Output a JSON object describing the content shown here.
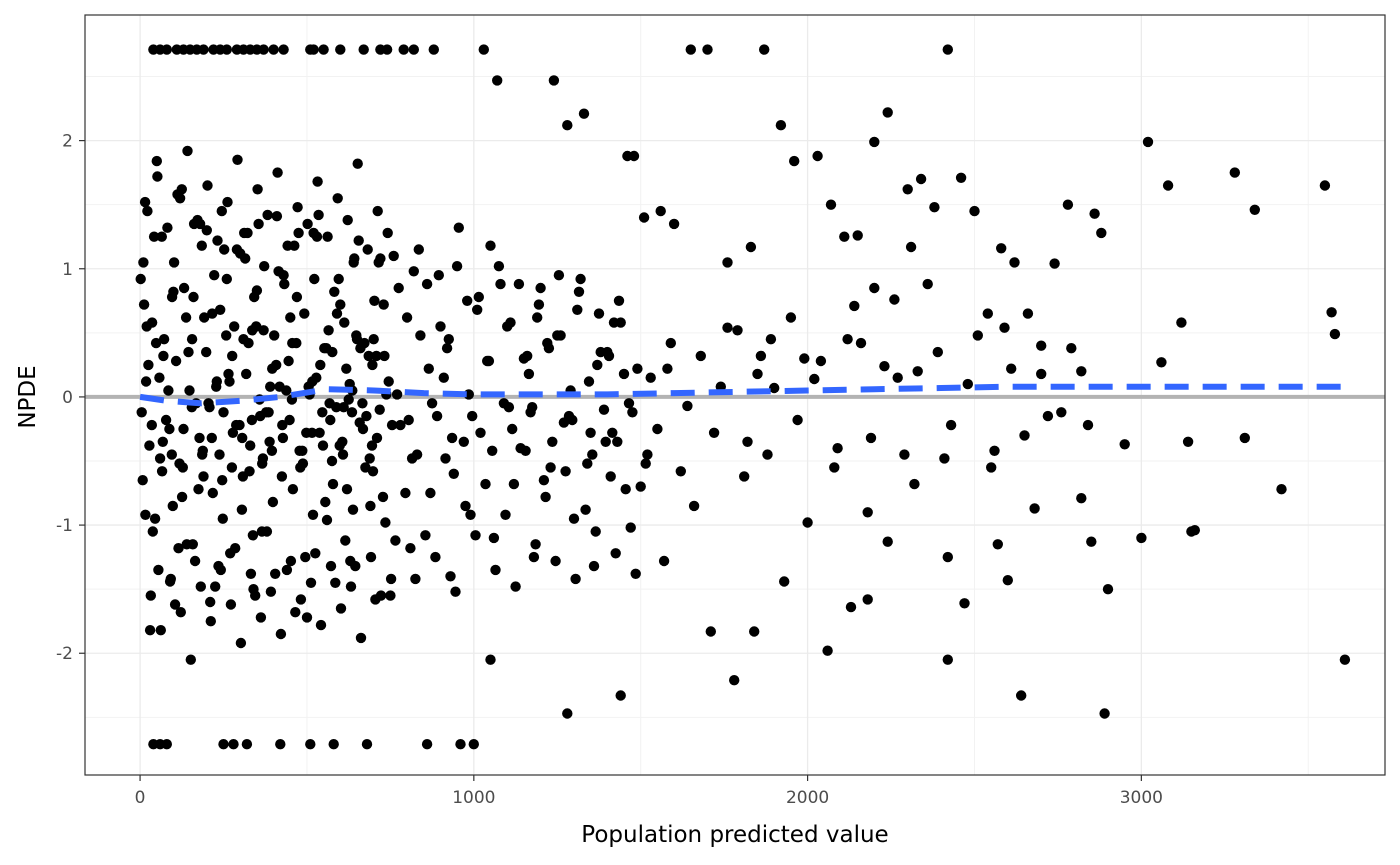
{
  "chart_data": {
    "type": "scatter",
    "title": "",
    "xlabel": "Population predicted value",
    "ylabel": "NPDE",
    "xlim": [
      -165,
      3730
    ],
    "ylim": [
      -2.95,
      2.98
    ],
    "x_ticks": [
      0,
      1000,
      2000,
      3000
    ],
    "y_ticks": [
      -2,
      -1,
      0,
      1,
      2
    ],
    "grid": true,
    "legend": "none",
    "reference_line": {
      "y": 0,
      "color": "#b3b3b3"
    },
    "trend_line": {
      "style": "dashed",
      "color": "#3366ff",
      "x": [
        0,
        80,
        180,
        300,
        420,
        560,
        700,
        850,
        1000,
        1200,
        1400,
        1600,
        1800,
        2000,
        2200,
        2400,
        2600,
        2800,
        3000,
        3200,
        3400,
        3600
      ],
      "y": [
        0.0,
        -0.03,
        -0.05,
        -0.03,
        0.0,
        0.06,
        0.05,
        0.03,
        0.02,
        0.02,
        0.02,
        0.03,
        0.04,
        0.05,
        0.06,
        0.07,
        0.08,
        0.08,
        0.08,
        0.08,
        0.08,
        0.08
      ]
    },
    "points": {
      "color": "#000000",
      "x": [
        40,
        60,
        80,
        110,
        130,
        150,
        170,
        190,
        220,
        240,
        260,
        290,
        310,
        330,
        350,
        370,
        400,
        430,
        510,
        520,
        550,
        600,
        670,
        720,
        740,
        790,
        820,
        880,
        1030,
        1070,
        1240,
        1280,
        1330,
        1460,
        1480,
        1510,
        1560,
        1600,
        1650,
        1700,
        1760,
        1830,
        1870,
        1920,
        1960,
        2030,
        2070,
        2110,
        2150,
        2200,
        2240,
        2300,
        2340,
        2380,
        2420,
        2460,
        2500,
        2540,
        2580,
        2620,
        2660,
        2700,
        2740,
        2780,
        2820,
        2860,
        2880,
        3020,
        3060,
        3080,
        3120,
        3140,
        3160,
        3280,
        3310,
        3340,
        3420,
        3550,
        3570,
        3580,
        3610,
        2890,
        2640,
        2900,
        2420,
        1440,
        1280,
        1780,
        1050,
        40,
        60,
        80,
        250,
        280,
        320,
        420,
        510,
        580,
        680,
        860,
        960,
        1000,
        2420,
        2470,
        2060,
        2130,
        2180,
        1710,
        1570,
        1840,
        1930,
        2000,
        2090,
        2240,
        2550,
        2650,
        2680,
        2820,
        2850,
        2570,
        2600,
        3000,
        3150,
        1900,
        2020,
        2120,
        2260,
        2310,
        2360,
        2480,
        2590,
        2700,
        2840,
        2200,
        2410,
        1640,
        1760,
        1860,
        2180,
        2230,
        2760,
        2950,
        1990,
        2140,
        2290,
        2330,
        50,
        120,
        200,
        260,
        300,
        350,
        410,
        470,
        530,
        590,
        640,
        700,
        760,
        820,
        900,
        950,
        1010,
        1080,
        1150,
        1190,
        1250,
        1320,
        1380,
        1420,
        1490,
        30,
        90,
        140,
        210,
        270,
        340,
        380,
        440,
        500,
        560,
        630,
        690,
        750,
        810,
        870,
        930,
        990,
        1060,
        1120,
        1180,
        1230,
        1300,
        1360,
        1410,
        1470,
        20,
        70,
        160,
        230,
        310,
        360,
        450,
        540,
        610,
        660,
        730,
        780,
        840,
        910,
        970,
        1040,
        1110,
        1170,
        1220,
        1290,
        1350,
        1400,
        1450,
        1520,
        1580,
        60,
        130,
        190,
        250,
        330,
        390,
        480,
        570,
        620,
        710,
        770,
        830,
        890,
        940,
        1020,
        1090,
        1140,
        1210,
        1270,
        1340,
        1390,
        1430,
        1500,
        1550,
        1620,
        10,
        100,
        180,
        240,
        290,
        370,
        430,
        520,
        600,
        650,
        720,
        800,
        860,
        920,
        980,
        1050,
        1100,
        1160,
        1200,
        1260,
        1310,
        1370,
        1440,
        1530,
        1590,
        45,
        115,
        175,
        235,
        305,
        365,
        425,
        495,
        555,
        615,
        675,
        735,
        795,
        855,
        915,
        975,
        1035,
        1095,
        1155,
        1215,
        1275,
        1335,
        1395,
        1455,
        1515,
        25,
        85,
        145,
        205,
        265,
        325,
        385,
        445,
        505,
        565,
        625,
        685,
        745,
        805,
        865,
        925,
        985,
        1045,
        1105,
        1165,
        1225,
        1285,
        1345,
        1405,
        1465,
        35,
        95,
        155,
        215,
        275,
        335,
        395,
        455,
        515,
        575,
        635,
        695,
        755,
        815,
        875,
        935,
        995,
        1055,
        1115,
        1175,
        1235,
        1295,
        1355,
        1415,
        1475,
        15,
        65,
        125,
        185,
        245,
        315,
        355,
        415,
        475,
        535,
        595,
        655,
        715,
        775,
        835,
        895,
        955,
        1015,
        1075,
        1135,
        1195,
        1255,
        1315,
        1375,
        1435,
        55,
        105,
        165,
        225,
        285,
        345,
        405,
        465,
        525,
        585,
        645,
        705,
        765,
        825,
        885,
        945,
        1005,
        1065,
        1125,
        1185,
        1245,
        1305,
        1365,
        1425,
        1485,
        1680,
        1720,
        1790,
        1810,
        1850,
        1880,
        1950,
        1970,
        2040,
        2080,
        2160,
        2190,
        2270,
        2320,
        2390,
        2430,
        2510,
        2560,
        2610,
        2720,
        2790,
        1660,
        1740,
        1820,
        1890,
        12,
        42,
        72,
        102,
        132,
        162,
        192,
        222,
        252,
        282,
        312,
        342,
        372,
        402,
        432,
        462,
        492,
        522,
        552,
        582,
        612,
        642,
        672,
        702,
        732,
        8,
        38,
        68,
        98,
        128,
        158,
        188,
        218,
        248,
        278,
        308,
        338,
        368,
        398,
        428,
        458,
        488,
        518,
        548,
        578,
        608,
        638,
        668,
        698,
        728,
        18,
        48,
        78,
        108,
        138,
        168,
        198,
        228,
        258,
        288,
        318,
        348,
        378,
        408,
        438,
        468,
        498,
        528,
        558,
        588,
        618,
        648,
        678,
        708,
        738,
        5,
        28,
        58,
        88,
        118,
        148,
        178,
        208,
        238,
        268,
        298,
        328,
        358,
        388,
        418,
        448,
        478,
        508,
        538,
        568,
        598,
        628,
        658,
        688,
        718,
        22,
        52,
        82,
        112,
        142,
        172,
        202,
        232,
        262,
        292,
        322,
        352,
        382,
        412,
        442,
        472,
        502,
        532,
        562,
        592,
        622,
        652,
        682,
        712,
        742,
        32,
        62,
        92,
        122,
        152,
        182,
        212,
        242,
        272,
        302,
        332,
        362,
        392,
        422,
        452,
        482,
        512,
        542,
        572,
        602,
        632,
        662,
        692,
        722,
        752,
        2,
        16,
        36,
        66,
        96,
        126,
        156,
        186,
        216,
        246,
        276,
        306,
        336,
        366,
        396,
        426,
        456,
        486,
        516,
        546,
        576,
        606,
        636,
        666,
        696
      ],
      "y": [
        2.71,
        2.71,
        2.71,
        2.71,
        2.71,
        2.71,
        2.71,
        2.71,
        2.71,
        2.71,
        2.71,
        2.71,
        2.71,
        2.71,
        2.71,
        2.71,
        2.71,
        2.71,
        2.71,
        2.71,
        2.71,
        2.71,
        2.71,
        2.71,
        2.71,
        2.71,
        2.71,
        2.71,
        2.71,
        2.47,
        2.47,
        2.12,
        2.21,
        1.88,
        1.88,
        1.4,
        1.45,
        1.35,
        2.71,
        2.71,
        1.05,
        1.17,
        2.71,
        2.12,
        1.84,
        1.88,
        1.5,
        1.25,
        1.26,
        1.99,
        2.22,
        1.62,
        1.7,
        1.48,
        2.71,
        1.71,
        1.45,
        0.65,
        1.16,
        1.05,
        0.65,
        0.4,
        1.04,
        1.5,
        0.2,
        1.43,
        1.28,
        1.99,
        0.27,
        1.65,
        0.58,
        -0.35,
        -1.04,
        1.75,
        -0.32,
        1.46,
        -0.72,
        1.65,
        0.66,
        0.49,
        -2.05,
        -2.47,
        -2.33,
        -1.5,
        -2.05,
        -2.33,
        -2.47,
        -2.21,
        -2.05,
        -2.71,
        -2.71,
        -2.71,
        -2.71,
        -2.71,
        -2.71,
        -2.71,
        -2.71,
        -2.71,
        -2.71,
        -2.71,
        -2.71,
        -2.71,
        -1.25,
        -1.61,
        -1.98,
        -1.64,
        -1.58,
        -1.83,
        -1.28,
        -1.83,
        -1.44,
        -0.98,
        -0.4,
        -1.13,
        -0.55,
        -0.3,
        -0.87,
        -0.79,
        -1.13,
        -1.15,
        -1.43,
        -1.1,
        -1.05,
        0.07,
        0.14,
        0.45,
        0.76,
        1.17,
        0.88,
        0.1,
        0.54,
        0.18,
        -0.22,
        0.85,
        -0.48,
        -0.07,
        0.54,
        0.32,
        -0.9,
        0.24,
        -0.12,
        -0.37,
        0.3,
        0.71,
        -0.45,
        0.2,
        1.84,
        1.55,
        1.3,
        0.92,
        1.12,
        0.83,
        1.41,
        0.78,
        1.25,
        0.65,
        1.05,
        0.45,
        1.1,
        0.98,
        0.55,
        1.02,
        0.68,
        0.88,
        0.3,
        0.62,
        0.48,
        0.92,
        0.35,
        0.58,
        0.22,
        -1.82,
        -1.44,
        -1.15,
        -1.6,
        -1.22,
        -1.5,
        -1.05,
        -1.35,
        -1.72,
        -0.96,
        -1.28,
        -0.85,
        -1.55,
        -1.18,
        -0.75,
        -1.4,
        -0.92,
        -1.1,
        -0.68,
        -1.25,
        -0.55,
        -0.95,
        -1.32,
        -0.62,
        -1.02,
        0.55,
        0.32,
        0.78,
        0.12,
        0.45,
        -0.15,
        0.62,
        0.25,
        -0.08,
        0.38,
        0.72,
        -0.22,
        0.48,
        0.15,
        -0.35,
        0.28,
        0.58,
        -0.12,
        0.42,
        0.05,
        -0.28,
        0.35,
        0.18,
        -0.45,
        0.22,
        -0.48,
        -0.25,
        -0.62,
        -0.12,
        -0.38,
        0.08,
        -0.55,
        -0.18,
        -0.72,
        -0.32,
        0.02,
        -0.45,
        -0.15,
        -0.6,
        -0.28,
        -0.05,
        -0.4,
        -0.65,
        -0.2,
        -0.52,
        -0.1,
        -0.35,
        -0.7,
        -0.25,
        -0.58,
        1.05,
        0.82,
        1.35,
        0.68,
        1.15,
        0.52,
        0.95,
        1.28,
        0.72,
        0.45,
        1.08,
        0.62,
        0.88,
        0.38,
        0.75,
        1.18,
        0.55,
        0.32,
        0.85,
        0.48,
        0.68,
        0.25,
        0.58,
        0.15,
        0.42,
        -0.95,
        -1.18,
        -0.72,
        -1.32,
        -0.88,
        -1.05,
        -0.62,
        -1.25,
        -0.82,
        -1.12,
        -0.55,
        -0.98,
        -0.75,
        -1.08,
        -0.48,
        -0.85,
        -0.68,
        -0.92,
        -0.42,
        -0.78,
        -0.58,
        -0.88,
        -0.35,
        -0.72,
        -0.52,
        0.25,
        0.05,
        0.35,
        -0.05,
        0.18,
        0.42,
        -0.12,
        0.28,
        0.08,
        0.52,
        -0.02,
        0.32,
        0.12,
        -0.18,
        0.22,
        0.45,
        0.02,
        0.28,
        -0.08,
        0.18,
        0.38,
        -0.15,
        0.12,
        0.32,
        -0.05,
        -0.22,
        -0.45,
        -0.08,
        -0.32,
        -0.55,
        -0.18,
        -0.42,
        -0.02,
        -0.28,
        -0.5,
        -0.12,
        -0.38,
        -0.22,
        -0.48,
        -0.05,
        -0.32,
        -0.15,
        -0.42,
        -0.25,
        -0.08,
        -0.35,
        -0.18,
        -0.45,
        -0.28,
        -0.12,
        1.52,
        1.25,
        1.62,
        1.18,
        1.45,
        1.08,
        1.35,
        0.98,
        1.28,
        1.42,
        0.92,
        1.22,
        1.05,
        0.85,
        1.15,
        0.95,
        1.32,
        0.78,
        1.02,
        0.88,
        0.72,
        0.95,
        0.82,
        0.65,
        0.75,
        -1.35,
        -1.62,
        -1.28,
        -1.48,
        -1.18,
        -1.55,
        -1.38,
        -1.68,
        -1.22,
        -1.45,
        -1.32,
        -1.58,
        -1.12,
        -1.42,
        -1.25,
        -1.52,
        -1.08,
        -1.35,
        -1.48,
        -1.15,
        -1.28,
        -1.42,
        -1.05,
        -1.22,
        -1.38,
        0.32,
        -0.28,
        0.52,
        -0.62,
        0.18,
        -0.45,
        0.62,
        -0.18,
        0.28,
        -0.55,
        0.42,
        -0.32,
        0.15,
        -0.68,
        0.35,
        -0.22,
        0.48,
        -0.42,
        0.22,
        -0.15,
        0.38,
        -0.85,
        0.08,
        -0.35,
        0.45,
        0.72,
        1.25,
        0.45,
        1.05,
        0.85,
        1.35,
        0.62,
        0.95,
        1.15,
        0.55,
        1.28,
        0.78,
        1.02,
        0.48,
        0.88,
        1.18,
        0.65,
        0.92,
        0.38,
        0.82,
        0.58,
        1.08,
        0.42,
        0.75,
        0.32,
        -0.65,
        -1.05,
        -0.35,
        -0.85,
        -0.55,
        -1.15,
        -0.42,
        -0.75,
        -0.95,
        -0.28,
        -0.62,
        -1.08,
        -0.48,
        -0.82,
        -0.32,
        -0.72,
        -0.52,
        -0.92,
        -0.38,
        -0.68,
        -0.45,
        -0.88,
        -0.25,
        -0.58,
        -0.78,
        0.12,
        0.42,
        -0.18,
        0.28,
        0.62,
        -0.05,
        0.35,
        0.08,
        0.48,
        -0.22,
        0.18,
        0.55,
        -0.12,
        0.25,
        0.05,
        0.42,
        -0.28,
        0.15,
        0.38,
        -0.08,
        0.22,
        0.48,
        -0.15,
        0.32,
        0.02,
        -0.12,
        -0.38,
        0.15,
        -0.25,
        -0.52,
        0.05,
        -0.32,
        -0.08,
        -0.45,
        0.12,
        -0.22,
        -0.58,
        -0.02,
        -0.35,
        0.08,
        -0.18,
        -0.42,
        0.02,
        -0.28,
        -0.05,
        -0.38,
        0.1,
        -0.2,
        -0.48,
        -0.1,
        1.45,
        1.72,
        1.32,
        1.58,
        1.92,
        1.38,
        1.65,
        1.22,
        1.52,
        1.85,
        1.28,
        1.62,
        1.42,
        1.75,
        1.18,
        1.48,
        1.35,
        1.68,
        1.25,
        1.55,
        1.38,
        1.82,
        1.15,
        1.45,
        1.28,
        -1.55,
        -1.82,
        -1.42,
        -1.68,
        -2.05,
        -1.48,
        -1.75,
        -1.35,
        -1.62,
        -1.92,
        -1.38,
        -1.72,
        -1.52,
        -1.85,
        -1.28,
        -1.58,
        -1.45,
        -1.78,
        -1.32,
        -1.65,
        -1.48,
        -1.88,
        -1.25,
        -1.55,
        -1.42,
        0.92,
        -0.92,
        0.58,
        -0.58,
        0.78,
        -0.78,
        0.45,
        -0.45,
        0.65,
        -0.65,
        0.32,
        -0.32,
        0.52,
        -0.52,
        0.22,
        -0.22,
        0.42,
        -0.42,
        0.12,
        -0.12,
        0.35,
        -0.35,
        0.05,
        -0.05,
        0.25
      ]
    }
  }
}
